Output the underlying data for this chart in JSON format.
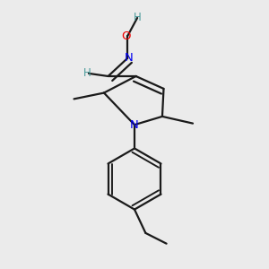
{
  "background_color": "#ebebeb",
  "bond_color": "#1a1a1a",
  "bond_width": 1.6,
  "atom_colors": {
    "H_oxime": "#4a9a9a",
    "N": "#0000ee",
    "O": "#ee0000"
  },
  "font_size_heavy": 9.5,
  "font_size_H": 8.5,
  "xlim": [
    0.15,
    0.85
  ],
  "ylim": [
    0.02,
    0.98
  ]
}
